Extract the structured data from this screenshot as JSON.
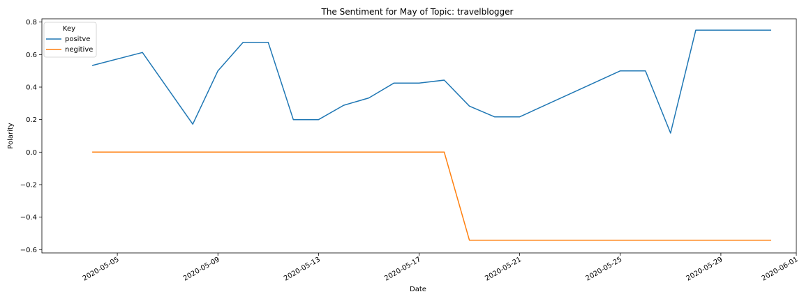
{
  "chart_data": {
    "type": "line",
    "title": "The Sentiment for May of Topic: travelblogger",
    "xlabel": "Date",
    "ylabel": "Polarity",
    "ylim": [
      -0.62,
      0.82
    ],
    "xlim": [
      "2020-05-02",
      "2020-06-01"
    ],
    "x_ticks": [
      "2020-05-05",
      "2020-05-09",
      "2020-05-13",
      "2020-05-17",
      "2020-05-21",
      "2020-05-25",
      "2020-05-29",
      "2020-06-01"
    ],
    "y_ticks": [
      0.8,
      0.6,
      0.4,
      0.2,
      0.0,
      -0.2,
      -0.4,
      -0.6
    ],
    "y_tick_labels": [
      "0.8",
      "0.6",
      "0.4",
      "0.2",
      "0.0",
      "−0.2",
      "−0.4",
      "−0.6"
    ],
    "legend": {
      "title": "Key",
      "position": "upper-left"
    },
    "grid": false,
    "series": [
      {
        "name": "positve",
        "color": "#1f77b4",
        "points": [
          [
            "2020-05-04",
            0.533
          ],
          [
            "2020-05-06",
            0.613
          ],
          [
            "2020-05-08",
            0.172
          ],
          [
            "2020-05-09",
            0.5
          ],
          [
            "2020-05-10",
            0.675
          ],
          [
            "2020-05-11",
            0.675
          ],
          [
            "2020-05-12",
            0.2
          ],
          [
            "2020-05-13",
            0.2
          ],
          [
            "2020-05-14",
            0.288
          ],
          [
            "2020-05-15",
            0.333
          ],
          [
            "2020-05-16",
            0.425
          ],
          [
            "2020-05-17",
            0.425
          ],
          [
            "2020-05-18",
            0.443
          ],
          [
            "2020-05-19",
            0.283
          ],
          [
            "2020-05-20",
            0.217
          ],
          [
            "2020-05-21",
            0.217
          ],
          [
            "2020-05-25",
            0.5
          ],
          [
            "2020-05-26",
            0.5
          ],
          [
            "2020-05-27",
            0.117
          ],
          [
            "2020-05-28",
            0.75
          ],
          [
            "2020-05-31",
            0.75
          ]
        ]
      },
      {
        "name": "negitive",
        "color": "#ff7f0e",
        "points": [
          [
            "2020-05-04",
            0.0
          ],
          [
            "2020-05-18",
            0.0
          ],
          [
            "2020-05-19",
            -0.542
          ],
          [
            "2020-05-31",
            -0.542
          ]
        ]
      }
    ]
  }
}
